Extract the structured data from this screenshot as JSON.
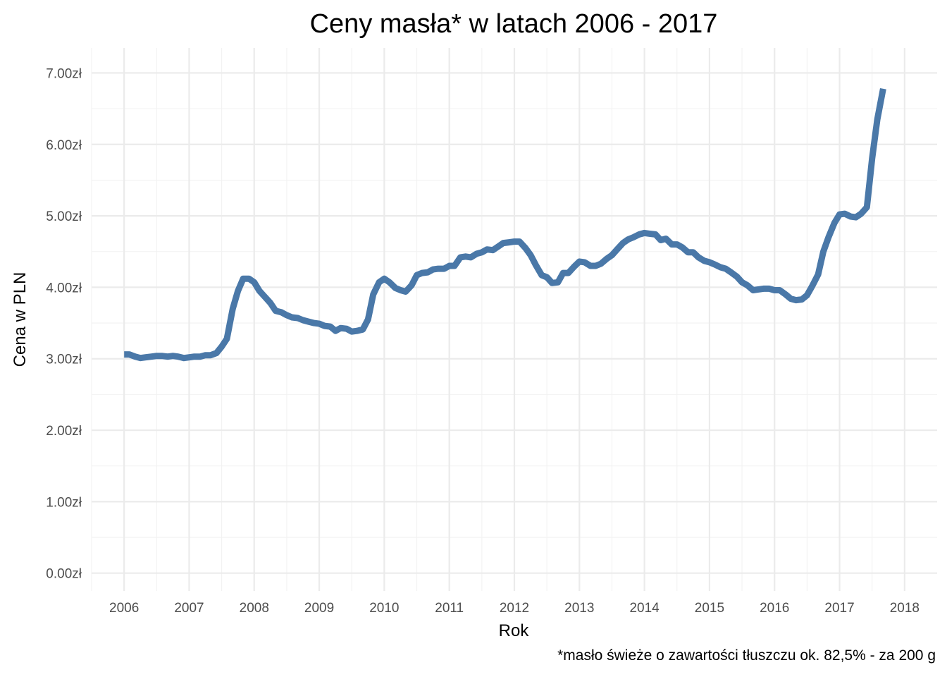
{
  "chart_data": {
    "type": "line",
    "title": "Ceny masła* w latach 2006 - 2017",
    "xlabel": "Rok",
    "ylabel": "Cena w PLN",
    "caption": "*masło świeże o zawartości tłuszczu ok. 82,5% - za 200 g",
    "xlim": [
      2005.5,
      2018.5
    ],
    "ylim": [
      -0.25,
      7.35
    ],
    "x_ticks": [
      2006,
      2007,
      2008,
      2009,
      2010,
      2011,
      2012,
      2013,
      2014,
      2015,
      2016,
      2017,
      2018
    ],
    "x_tick_labels": [
      "2006",
      "2007",
      "2008",
      "2009",
      "2010",
      "2011",
      "2012",
      "2013",
      "2014",
      "2015",
      "2016",
      "2017",
      "2018"
    ],
    "y_ticks": [
      0,
      1,
      2,
      3,
      4,
      5,
      6,
      7
    ],
    "y_tick_labels": [
      "0.00zł",
      "1.00zł",
      "2.00zł",
      "3.00zł",
      "4.00zł",
      "5.00zł",
      "6.00zł",
      "7.00zł"
    ],
    "grid": true,
    "line_color": "#4a78a8",
    "series": [
      {
        "x": [
          2006.0,
          2006.08,
          2006.17,
          2006.25,
          2006.33,
          2006.42,
          2006.5,
          2006.58,
          2006.67,
          2006.75,
          2006.83,
          2006.92,
          2007.0,
          2007.08,
          2007.17,
          2007.25,
          2007.33,
          2007.42,
          2007.5,
          2007.58,
          2007.67,
          2007.75,
          2007.83,
          2007.92,
          2008.0,
          2008.08,
          2008.17,
          2008.25,
          2008.33,
          2008.42,
          2008.5,
          2008.58,
          2008.67,
          2008.75,
          2008.83,
          2008.92,
          2009.0,
          2009.08,
          2009.17,
          2009.25,
          2009.33,
          2009.42,
          2009.5,
          2009.58,
          2009.67,
          2009.75,
          2009.83,
          2009.92,
          2010.0,
          2010.08,
          2010.17,
          2010.25,
          2010.33,
          2010.42,
          2010.5,
          2010.58,
          2010.67,
          2010.75,
          2010.83,
          2010.92,
          2011.0,
          2011.08,
          2011.17,
          2011.25,
          2011.33,
          2011.42,
          2011.5,
          2011.58,
          2011.67,
          2011.75,
          2011.83,
          2011.92,
          2012.0,
          2012.08,
          2012.17,
          2012.25,
          2012.33,
          2012.42,
          2012.5,
          2012.58,
          2012.67,
          2012.75,
          2012.83,
          2012.92,
          2013.0,
          2013.08,
          2013.17,
          2013.25,
          2013.33,
          2013.42,
          2013.5,
          2013.58,
          2013.67,
          2013.75,
          2013.83,
          2013.92,
          2014.0,
          2014.08,
          2014.17,
          2014.25,
          2014.33,
          2014.42,
          2014.5,
          2014.58,
          2014.67,
          2014.75,
          2014.83,
          2014.92,
          2015.0,
          2015.08,
          2015.17,
          2015.25,
          2015.33,
          2015.42,
          2015.5,
          2015.58,
          2015.67,
          2015.75,
          2015.83,
          2015.92,
          2016.0,
          2016.08,
          2016.17,
          2016.25,
          2016.33,
          2016.42,
          2016.5,
          2016.58,
          2016.67,
          2016.75,
          2016.83,
          2016.92,
          2017.0,
          2017.08,
          2017.17,
          2017.25,
          2017.33,
          2017.42,
          2017.5,
          2017.58,
          2017.67
        ],
        "values": [
          3.06,
          3.06,
          3.03,
          3.01,
          3.02,
          3.03,
          3.04,
          3.04,
          3.03,
          3.04,
          3.03,
          3.01,
          3.02,
          3.03,
          3.03,
          3.05,
          3.05,
          3.08,
          3.17,
          3.28,
          3.7,
          3.95,
          4.12,
          4.12,
          4.07,
          3.95,
          3.86,
          3.78,
          3.67,
          3.65,
          3.61,
          3.58,
          3.57,
          3.54,
          3.52,
          3.5,
          3.49,
          3.46,
          3.45,
          3.39,
          3.43,
          3.42,
          3.38,
          3.39,
          3.41,
          3.55,
          3.9,
          4.07,
          4.12,
          4.07,
          3.99,
          3.96,
          3.94,
          4.03,
          4.17,
          4.2,
          4.21,
          4.25,
          4.26,
          4.26,
          4.3,
          4.3,
          4.42,
          4.43,
          4.42,
          4.47,
          4.49,
          4.53,
          4.52,
          4.57,
          4.62,
          4.63,
          4.64,
          4.64,
          4.55,
          4.45,
          4.31,
          4.17,
          4.14,
          4.06,
          4.07,
          4.2,
          4.2,
          4.29,
          4.36,
          4.35,
          4.3,
          4.3,
          4.33,
          4.4,
          4.45,
          4.53,
          4.62,
          4.67,
          4.7,
          4.74,
          4.76,
          4.75,
          4.74,
          4.66,
          4.68,
          4.6,
          4.6,
          4.56,
          4.49,
          4.49,
          4.42,
          4.37,
          4.35,
          4.32,
          4.28,
          4.26,
          4.21,
          4.15,
          4.07,
          4.03,
          3.96,
          3.97,
          3.98,
          3.98,
          3.96,
          3.96,
          3.9,
          3.84,
          3.82,
          3.83,
          3.89,
          4.02,
          4.18,
          4.5,
          4.7,
          4.9,
          5.02,
          5.03,
          4.99,
          4.98,
          5.03,
          5.12,
          5.8,
          6.35,
          6.78
        ]
      }
    ]
  }
}
